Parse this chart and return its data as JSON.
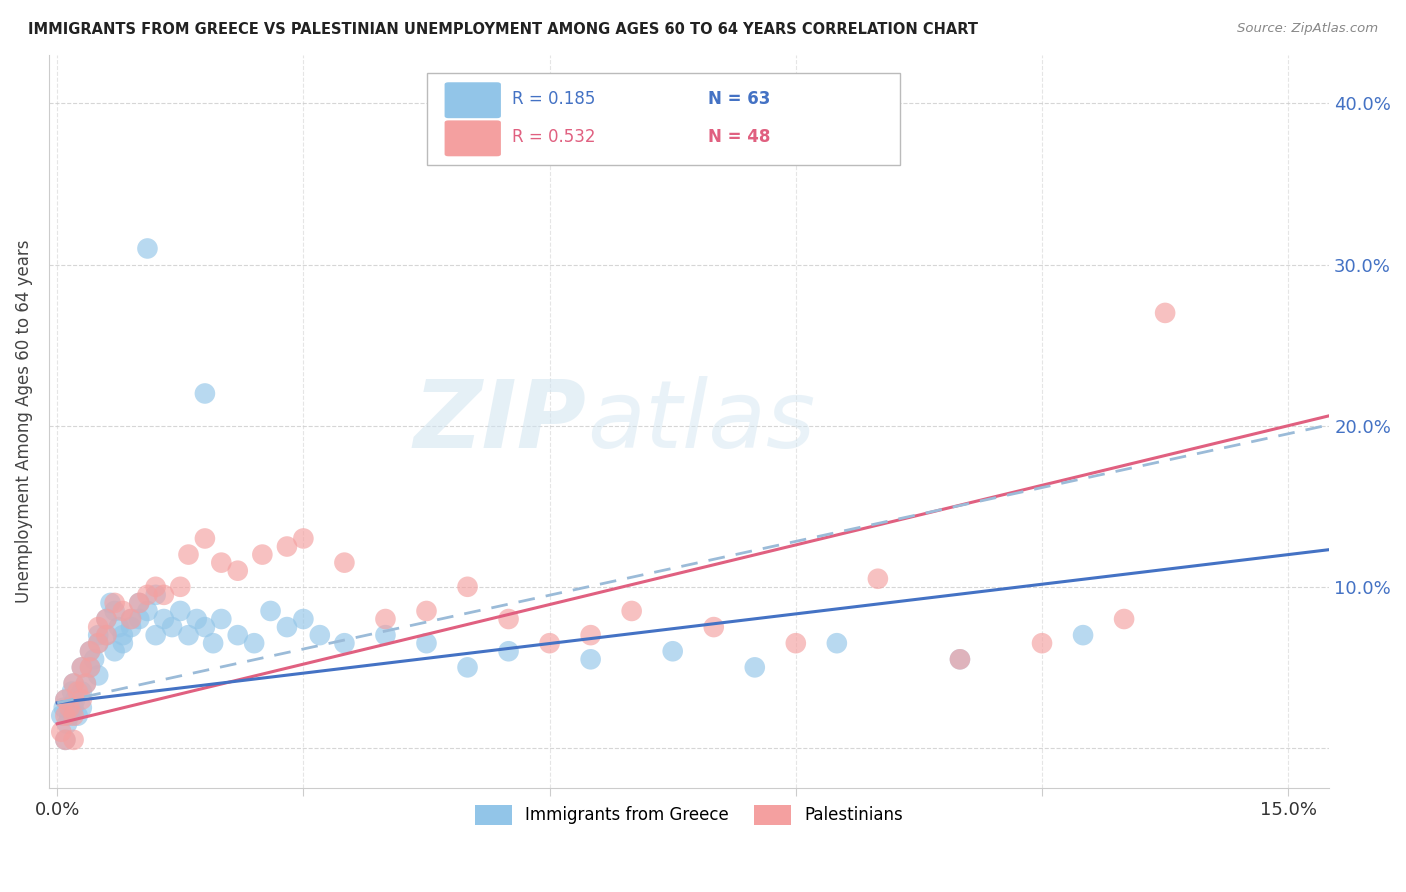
{
  "title": "IMMIGRANTS FROM GREECE VS PALESTINIAN UNEMPLOYMENT AMONG AGES 60 TO 64 YEARS CORRELATION CHART",
  "source": "Source: ZipAtlas.com",
  "ylabel": "Unemployment Among Ages 60 to 64 years",
  "xlim": [
    -0.001,
    0.155
  ],
  "ylim": [
    -0.025,
    0.43
  ],
  "xticks": [
    0.0,
    0.03,
    0.06,
    0.09,
    0.12,
    0.15
  ],
  "xtick_labels": [
    "0.0%",
    "",
    "",
    "",
    "",
    "15.0%"
  ],
  "ytick_labels_right": [
    "10.0%",
    "20.0%",
    "30.0%",
    "40.0%"
  ],
  "ytick_vals_right": [
    0.1,
    0.2,
    0.3,
    0.4
  ],
  "color_blue": "#92C5E8",
  "color_pink": "#F4A0A0",
  "line_blue": "#4472C4",
  "line_pink": "#E06080",
  "line_blue_dash": "#9BB8D8",
  "R_blue": 0.185,
  "N_blue": 63,
  "R_pink": 0.532,
  "N_pink": 48,
  "blue_intercept": 0.027,
  "blue_slope": 0.93,
  "pink_intercept": 0.005,
  "pink_slope": 1.27,
  "blue_x": [
    0.0005,
    0.0008,
    0.001,
    0.0012,
    0.0015,
    0.0018,
    0.002,
    0.002,
    0.0022,
    0.0025,
    0.003,
    0.003,
    0.003,
    0.0035,
    0.004,
    0.004,
    0.0045,
    0.005,
    0.005,
    0.005,
    0.006,
    0.006,
    0.0065,
    0.007,
    0.007,
    0.0075,
    0.008,
    0.008,
    0.009,
    0.009,
    0.01,
    0.01,
    0.011,
    0.012,
    0.012,
    0.013,
    0.014,
    0.015,
    0.016,
    0.017,
    0.018,
    0.019,
    0.02,
    0.022,
    0.024,
    0.026,
    0.028,
    0.03,
    0.032,
    0.035,
    0.04,
    0.045,
    0.05,
    0.055,
    0.065,
    0.075,
    0.085,
    0.095,
    0.11,
    0.125,
    0.011,
    0.018,
    0.001
  ],
  "blue_y": [
    0.02,
    0.025,
    0.03,
    0.015,
    0.02,
    0.035,
    0.025,
    0.04,
    0.03,
    0.02,
    0.05,
    0.035,
    0.025,
    0.04,
    0.06,
    0.05,
    0.055,
    0.065,
    0.045,
    0.07,
    0.08,
    0.07,
    0.09,
    0.06,
    0.085,
    0.075,
    0.07,
    0.065,
    0.08,
    0.075,
    0.09,
    0.08,
    0.085,
    0.095,
    0.07,
    0.08,
    0.075,
    0.085,
    0.07,
    0.08,
    0.075,
    0.065,
    0.08,
    0.07,
    0.065,
    0.085,
    0.075,
    0.08,
    0.07,
    0.065,
    0.07,
    0.065,
    0.05,
    0.06,
    0.055,
    0.06,
    0.05,
    0.065,
    0.055,
    0.07,
    0.31,
    0.22,
    0.005
  ],
  "pink_x": [
    0.0005,
    0.001,
    0.001,
    0.0015,
    0.002,
    0.002,
    0.0025,
    0.003,
    0.003,
    0.0035,
    0.004,
    0.004,
    0.005,
    0.005,
    0.006,
    0.006,
    0.007,
    0.008,
    0.009,
    0.01,
    0.011,
    0.012,
    0.013,
    0.015,
    0.016,
    0.018,
    0.02,
    0.022,
    0.025,
    0.028,
    0.03,
    0.035,
    0.04,
    0.045,
    0.05,
    0.055,
    0.06,
    0.065,
    0.07,
    0.08,
    0.09,
    0.1,
    0.11,
    0.12,
    0.13,
    0.135,
    0.001,
    0.002
  ],
  "pink_y": [
    0.01,
    0.02,
    0.03,
    0.025,
    0.02,
    0.04,
    0.035,
    0.03,
    0.05,
    0.04,
    0.06,
    0.05,
    0.065,
    0.075,
    0.07,
    0.08,
    0.09,
    0.085,
    0.08,
    0.09,
    0.095,
    0.1,
    0.095,
    0.1,
    0.12,
    0.13,
    0.115,
    0.11,
    0.12,
    0.125,
    0.13,
    0.115,
    0.08,
    0.085,
    0.1,
    0.08,
    0.065,
    0.07,
    0.085,
    0.075,
    0.065,
    0.105,
    0.055,
    0.065,
    0.08,
    0.27,
    0.005,
    0.005
  ]
}
